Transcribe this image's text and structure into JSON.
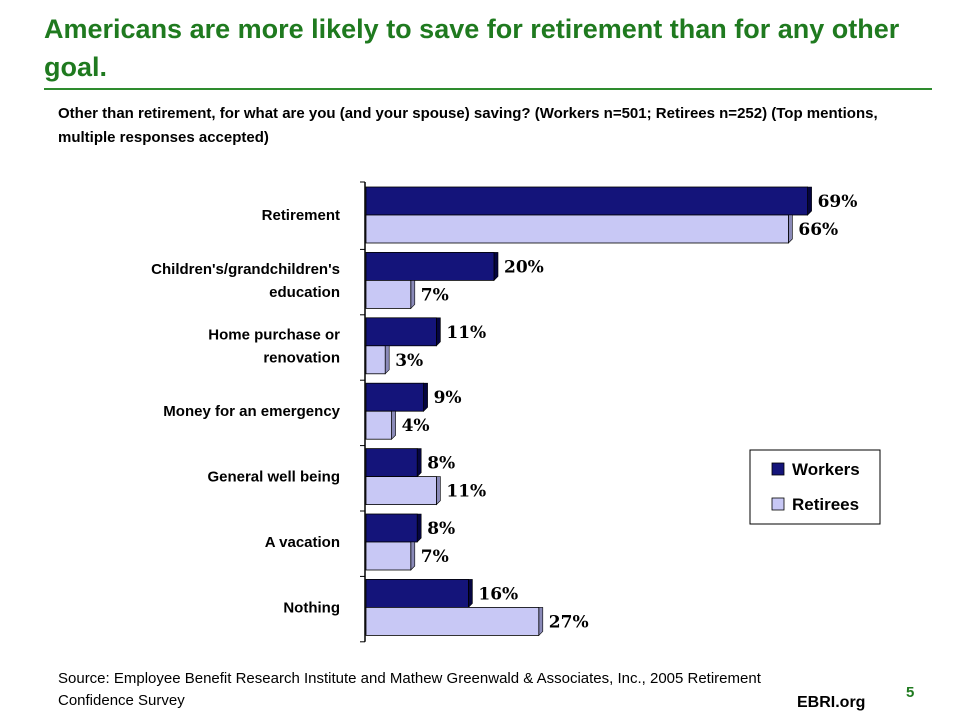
{
  "slide": {
    "title": "Americans are more likely to save for retirement than for any other goal.",
    "subtitle": "Other than retirement, for what are you (and your spouse) saving?  (Workers n=501; Retirees n=252) (Top mentions, multiple responses accepted)",
    "source": "Source: Employee Benefit Research Institute and Mathew Greenwald & Associates, Inc., 2005 Retirement Confidence Survey",
    "brand": "EBRI.org",
    "page_number": "5"
  },
  "colors": {
    "title": "#1f7a1f",
    "workers": "#14147a",
    "retirees": "#c8c8f5"
  },
  "chart_data": {
    "type": "bar",
    "orientation": "horizontal",
    "categories": [
      [
        "Retirement"
      ],
      [
        "Children's/grandchildren's",
        "education"
      ],
      [
        "Home purchase or",
        "renovation"
      ],
      [
        "Money for an emergency"
      ],
      [
        "General well being"
      ],
      [
        "A vacation"
      ],
      [
        "Nothing"
      ]
    ],
    "series": [
      {
        "name": "Workers",
        "values": [
          69,
          20,
          11,
          9,
          8,
          8,
          16
        ],
        "labels": [
          "69%",
          "20%",
          "11%",
          "9%",
          "8%",
          "8%",
          "16%"
        ]
      },
      {
        "name": "Retirees",
        "values": [
          66,
          7,
          3,
          4,
          11,
          7,
          27
        ],
        "labels": [
          "66%",
          "7%",
          "3%",
          "4%",
          "11%",
          "7%",
          "27%"
        ]
      }
    ],
    "xlim": [
      0,
      70
    ],
    "legend_position": "right",
    "grid": false
  }
}
